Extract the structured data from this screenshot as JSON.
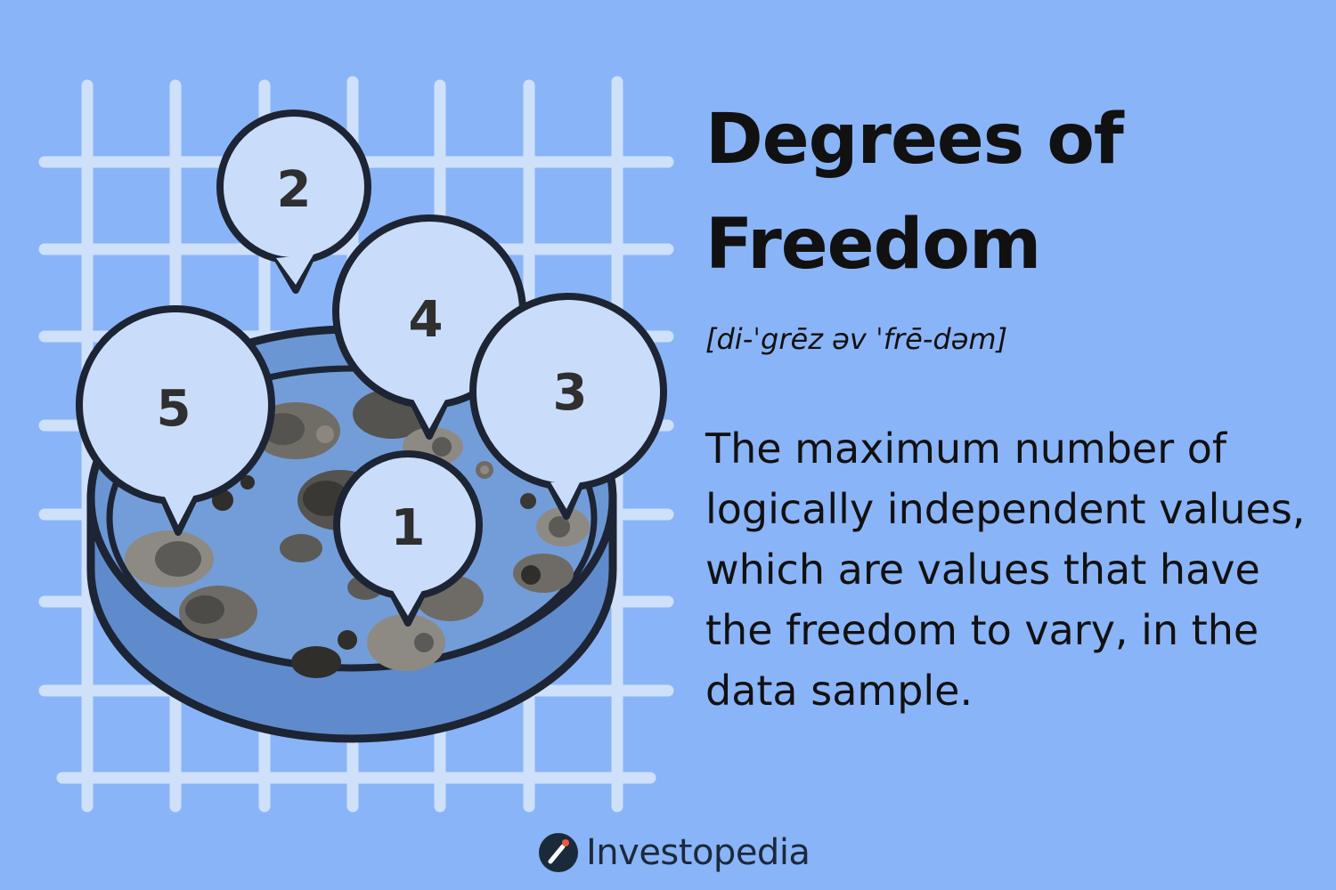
{
  "title": {
    "line1": "Degrees of",
    "line2": "Freedom"
  },
  "pronunciation": "[di-ˈgrēz əv ˈfrē-dəm]",
  "definition": "The maximum number of logically independent values, which are values that have the freedom to vary, in the data sample.",
  "illustration": {
    "bubbles": [
      "2",
      "4",
      "5",
      "3",
      "1"
    ]
  },
  "brand": {
    "name": "Investopedia",
    "icon": "investopedia-logo-icon"
  },
  "colors": {
    "background": "#8ab4f8",
    "grid": "#d3e3fb",
    "bubble_fill": "#c9ddfb",
    "dish_fill": "#6b96d4",
    "outline": "#1d2433",
    "text": "#111111"
  }
}
